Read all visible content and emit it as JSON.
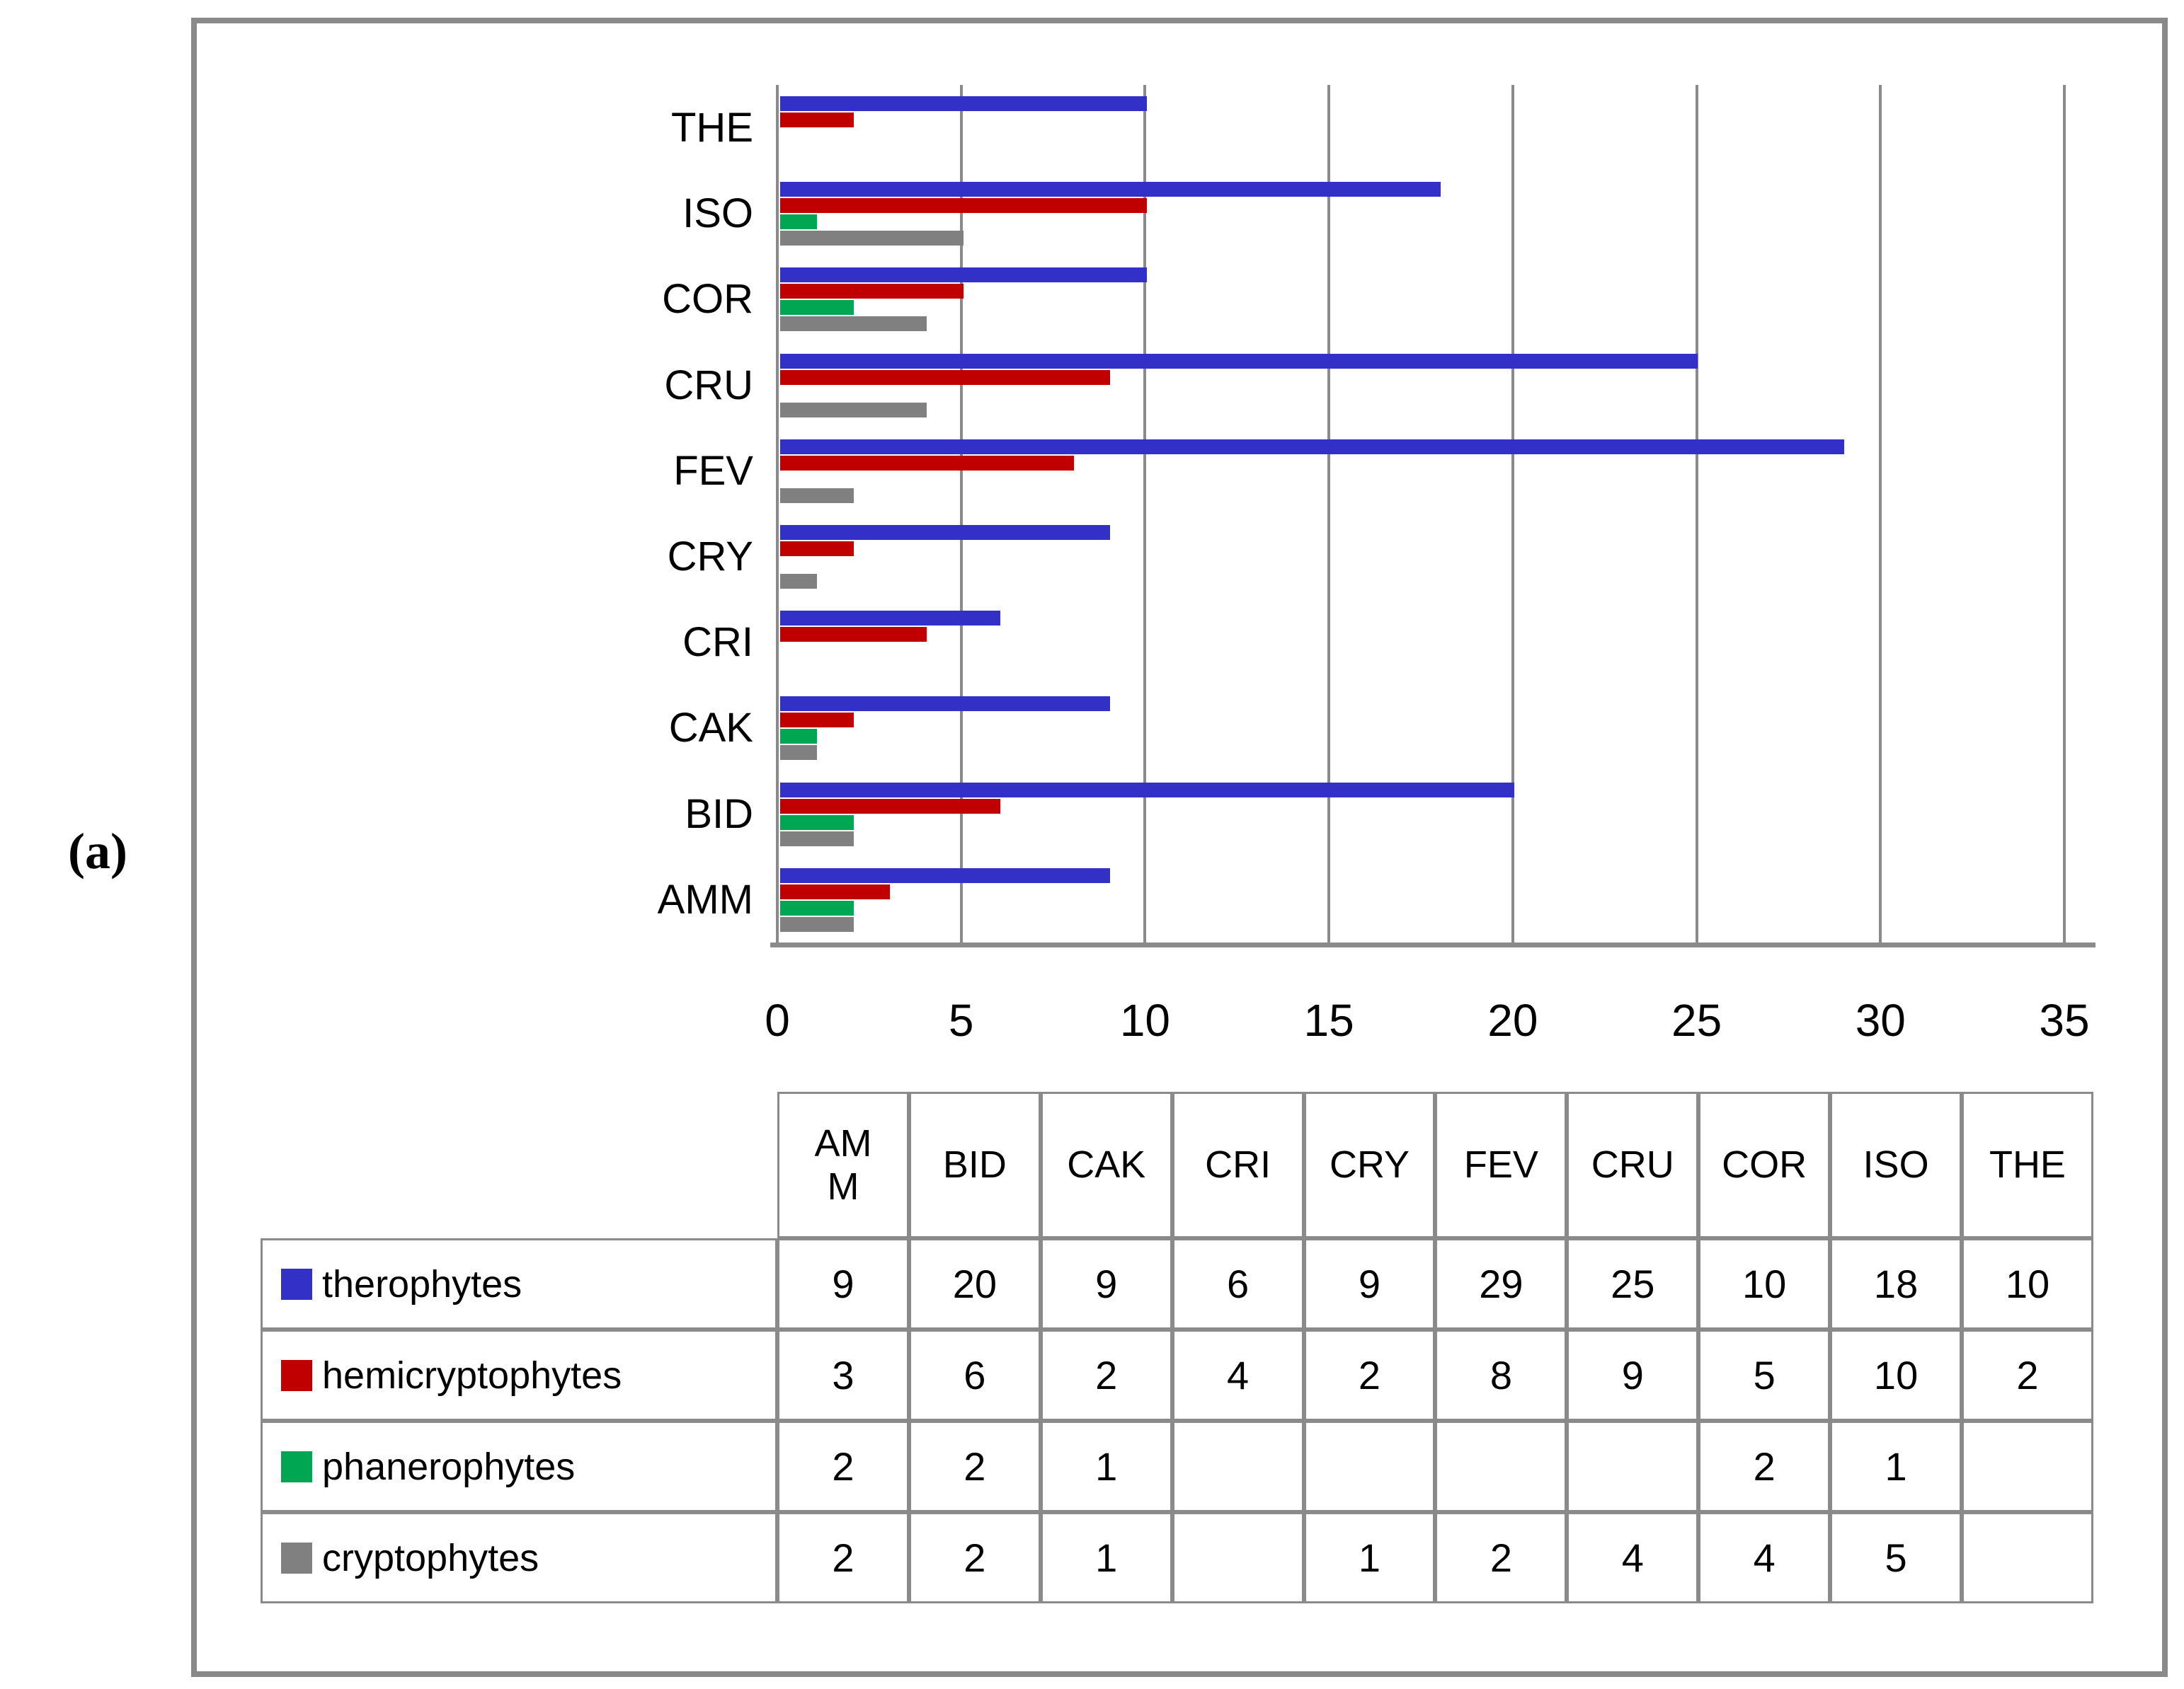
{
  "figure": {
    "panel_label": "(a)"
  },
  "colors": {
    "therophytes": "#3330C8",
    "hemicryptophytes": "#C00000",
    "phanerophytes": "#00A651",
    "cryptophytes": "#808080",
    "grid": "#8a8a8a",
    "frame": "#898989"
  },
  "chart_data": {
    "type": "bar",
    "orientation": "horizontal",
    "title": "",
    "xlabel": "",
    "ylabel": "",
    "categories": [
      "AMM",
      "BID",
      "CAK",
      "CRI",
      "CRY",
      "FEV",
      "CRU",
      "COR",
      "ISO",
      "THE"
    ],
    "categories_axis_top_to_bottom": [
      "THE",
      "ISO",
      "COR",
      "CRU",
      "FEV",
      "CRY",
      "CRI",
      "CAK",
      "BID",
      "AMM"
    ],
    "series": [
      {
        "name": "therophytes",
        "color": "#3330C8",
        "values": [
          9,
          20,
          9,
          6,
          9,
          29,
          25,
          10,
          18,
          10
        ]
      },
      {
        "name": "hemicryptophytes",
        "color": "#C00000",
        "values": [
          3,
          6,
          2,
          4,
          2,
          8,
          9,
          5,
          10,
          2
        ]
      },
      {
        "name": "phanerophytes",
        "color": "#00A651",
        "values": [
          2,
          2,
          1,
          null,
          null,
          null,
          null,
          2,
          1,
          null
        ]
      },
      {
        "name": "cryptophytes",
        "color": "#808080",
        "values": [
          2,
          2,
          1,
          null,
          1,
          2,
          4,
          4,
          5,
          null
        ]
      }
    ],
    "x_axis": {
      "min": 0,
      "max": 35,
      "tick_interval": 5,
      "tick_labels": [
        "0",
        "5",
        "10",
        "15",
        "20",
        "25",
        "30",
        "35"
      ]
    },
    "gridlines": "vertical",
    "legend_position": "table-row-labels"
  },
  "table": {
    "column_headers": [
      "AMM",
      "BID",
      "CAK",
      "CRI",
      "CRY",
      "FEV",
      "CRU",
      "COR",
      "ISO",
      "THE"
    ],
    "rows": [
      {
        "label": "therophytes",
        "swatch_color": "#3330C8",
        "values": [
          "9",
          "20",
          "9",
          "6",
          "9",
          "29",
          "25",
          "10",
          "18",
          "10"
        ]
      },
      {
        "label": "hemicryptophytes",
        "swatch_color": "#C00000",
        "values": [
          "3",
          "6",
          "2",
          "4",
          "2",
          "8",
          "9",
          "5",
          "10",
          "2"
        ]
      },
      {
        "label": "phanerophytes",
        "swatch_color": "#00A651",
        "values": [
          "2",
          "2",
          "1",
          "",
          "",
          "",
          "",
          "2",
          "1",
          ""
        ]
      },
      {
        "label": "cryptophytes",
        "swatch_color": "#808080",
        "values": [
          "2",
          "2",
          "1",
          "",
          "1",
          "2",
          "4",
          "4",
          "5",
          ""
        ]
      }
    ]
  }
}
